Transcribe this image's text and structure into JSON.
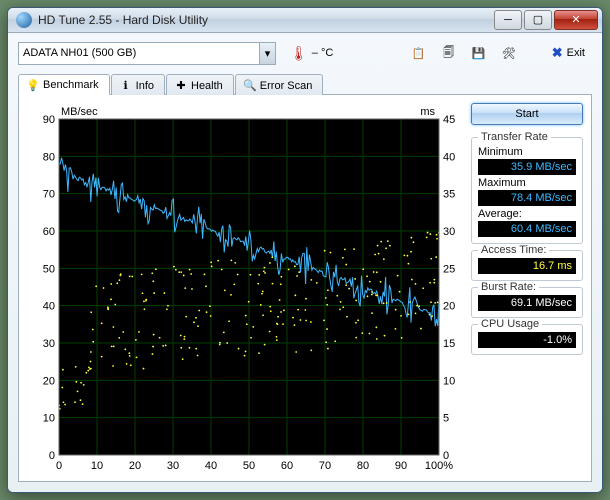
{
  "window": {
    "title": "HD Tune 2.55 - Hard Disk Utility"
  },
  "dropdown": {
    "value": "ADATA    NH01 (500 GB)"
  },
  "temp": "– °C",
  "exit_label": "Exit",
  "tabs": [
    {
      "label": "Benchmark",
      "icon": "💡",
      "active": true
    },
    {
      "label": "Info",
      "icon": "ℹ",
      "active": false
    },
    {
      "label": "Health",
      "icon": "✚",
      "active": false
    },
    {
      "label": "Error Scan",
      "icon": "🔍",
      "active": false
    }
  ],
  "start_label": "Start",
  "groups": {
    "transfer": {
      "title": "Transfer Rate",
      "rows": [
        {
          "label": "Minimum",
          "value": "35.9 MB/sec",
          "cls": "blue"
        },
        {
          "label": "Maximum",
          "value": "78.4 MB/sec",
          "cls": "blue"
        },
        {
          "label": "Average:",
          "value": "60.4 MB/sec",
          "cls": "blue"
        }
      ]
    },
    "access": {
      "title": "Access Time:",
      "value": "16.7 ms",
      "cls": "yellow"
    },
    "burst": {
      "title": "Burst Rate:",
      "value": "69.1 MB/sec",
      "cls": "white"
    },
    "cpu": {
      "title": "CPU Usage",
      "value": "-1.0%",
      "cls": "white"
    }
  },
  "chart": {
    "axis_y1_label": "MB/sec",
    "axis_y2_label": "ms",
    "y1_ticks": [
      0,
      10,
      20,
      30,
      40,
      50,
      60,
      70,
      80,
      90
    ],
    "y2_ticks": [
      0,
      5,
      10,
      15,
      20,
      25,
      30,
      35,
      40,
      45
    ],
    "x_ticks": [
      0,
      10,
      20,
      30,
      40,
      50,
      60,
      70,
      80,
      90,
      "100%"
    ],
    "bg": "#000000",
    "grid": "#004000",
    "line_color": "#40b8ff",
    "dot_color": "#ffff40",
    "y1_max": 90,
    "y2_max": 45,
    "transfer_start": 76,
    "transfer_end": 37,
    "transfer_noise": 4,
    "access_mean_ms": 16.7,
    "access_spread_ms": 10
  }
}
